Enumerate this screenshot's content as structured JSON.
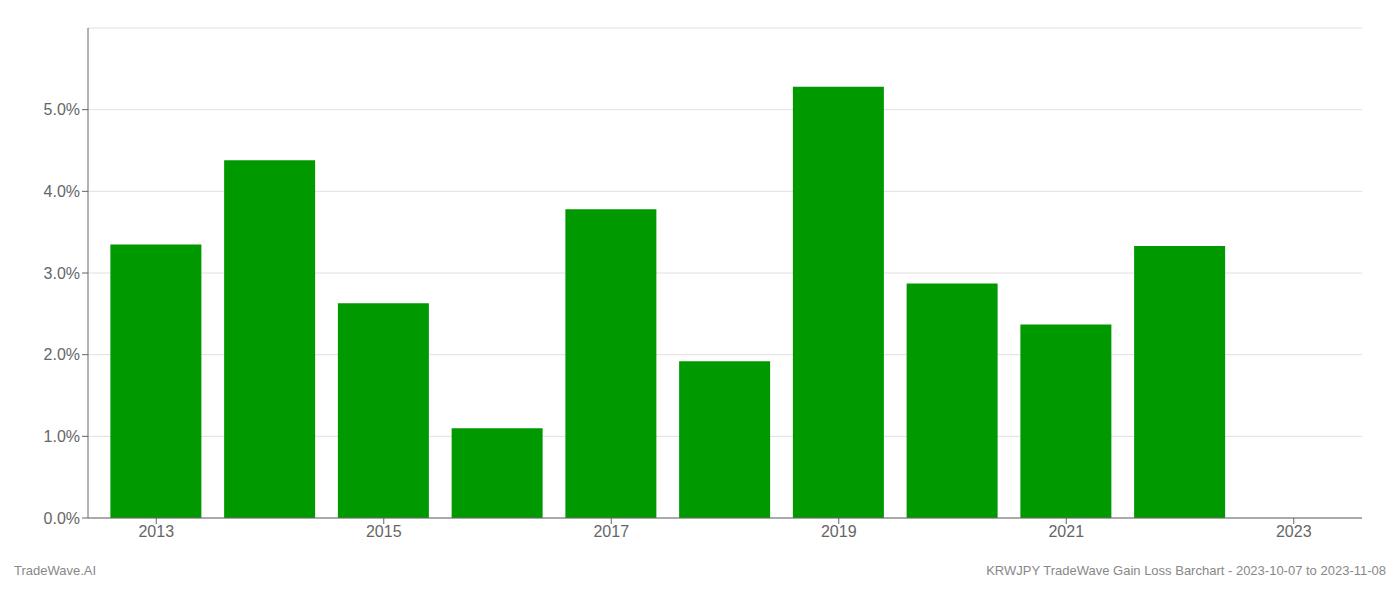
{
  "chart_data": {
    "type": "bar",
    "x": [
      2013,
      2014,
      2015,
      2016,
      2017,
      2018,
      2019,
      2020,
      2021,
      2022
    ],
    "values": [
      0.0335,
      0.0438,
      0.0263,
      0.011,
      0.0378,
      0.0192,
      0.0528,
      0.0287,
      0.0237,
      0.0333
    ],
    "color": "#009900",
    "xlim": [
      2012.4,
      2023.6
    ],
    "xticks": [
      2013,
      2015,
      2017,
      2019,
      2021,
      2023
    ],
    "ylim": [
      0,
      0.06
    ],
    "yticks": [
      {
        "value": 0.0,
        "label": "0.0%"
      },
      {
        "value": 0.01,
        "label": "1.0%"
      },
      {
        "value": 0.02,
        "label": "2.0%"
      },
      {
        "value": 0.03,
        "label": "3.0%"
      },
      {
        "value": 0.04,
        "label": "4.0%"
      },
      {
        "value": 0.05,
        "label": "5.0%"
      }
    ],
    "grid": true,
    "annotations": [
      "TradeWave.AI",
      "KRWJPY TradeWave Gain Loss Barchart - 2023-10-07 to 2023-11-08"
    ]
  }
}
